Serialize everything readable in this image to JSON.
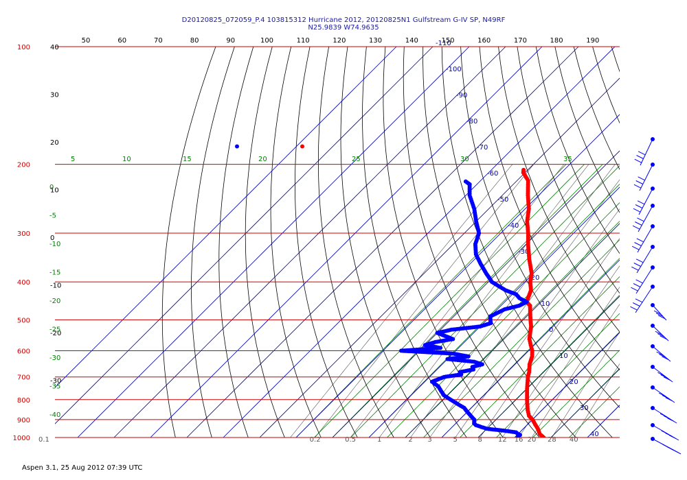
{
  "header": {
    "title_line1": "D20120825_072059_P.4 103815312 Hurricane 2012, 20120825N1 Gulfstream G-IV SP, N49RF",
    "title_line2": "N25.9839 W74.9635"
  },
  "footer": {
    "text": "Aspen 3.1, 25 Aug 2012  07:39 UTC"
  },
  "colors": {
    "temperature": "#ff0000",
    "dewpoint": "#0000ff",
    "isobar": "#cc0000",
    "isotherm": "#0000aa",
    "dry_adiabat": "#000000",
    "moist_adiabat": "#008000",
    "mixing_ratio": "#555555"
  },
  "chart_data": {
    "type": "line",
    "chart_kind": "Skew-T log-P sounding",
    "pressure_levels": [
      100,
      200,
      300,
      400,
      500,
      600,
      700,
      800,
      900,
      1000
    ],
    "pressure_labels": [
      "100",
      "200",
      "300",
      "400",
      "500",
      "600",
      "700",
      "800",
      "900",
      "1000"
    ],
    "top_axis_ticks": [
      "50",
      "60",
      "70",
      "80",
      "90",
      "100",
      "110",
      "120",
      "130",
      "140",
      "150",
      "160",
      "170",
      "180",
      "190"
    ],
    "isotherm_labels": [
      "-110",
      "-100",
      "-90",
      "-80",
      "-70",
      "-60",
      "-50",
      "-40",
      "-30",
      "-20",
      "-10",
      "0",
      "10",
      "20",
      "30",
      "40"
    ],
    "dry_adiabat_labels": [
      "40",
      "30",
      "20",
      "10",
      "0",
      "-10",
      "-20",
      "-30"
    ],
    "moist_adiabat_labels": [
      "5",
      "10",
      "15",
      "20",
      "25",
      "30",
      "35",
      "0",
      "-5",
      "-10",
      "-15",
      "-20",
      "-25",
      "-30",
      "-35",
      "-40"
    ],
    "mixing_ratio_labels": [
      "0.1",
      "0.2",
      "0.5",
      "1",
      "2",
      "3",
      "5",
      "8",
      "12",
      "16",
      "20",
      "28",
      "40"
    ],
    "series": [
      {
        "name": "Temperature",
        "unit": "°C",
        "p": [
          1000,
          980,
          950,
          925,
          900,
          880,
          850,
          800,
          750,
          700,
          680,
          650,
          620,
          600,
          580,
          560,
          540,
          520,
          500,
          480,
          460,
          450,
          420,
          400,
          380,
          350,
          320,
          300,
          280,
          260,
          240,
          220,
          210,
          205
        ],
        "t": [
          28,
          26,
          24,
          22,
          20,
          18,
          16,
          13,
          10,
          7,
          6,
          4,
          2.5,
          1,
          -1,
          -3,
          -4.5,
          -6,
          -8,
          -10,
          -12,
          -14,
          -16,
          -18.5,
          -20.5,
          -25,
          -29.5,
          -32.5,
          -36,
          -39,
          -43,
          -47,
          -50.5,
          -51.5
        ]
      },
      {
        "name": "Dewpoint",
        "unit": "°C",
        "p": [
          1000,
          990,
          985,
          980,
          970,
          960,
          950,
          930,
          920,
          900,
          880,
          860,
          840,
          820,
          800,
          780,
          760,
          740,
          720,
          710,
          700,
          690,
          680,
          670,
          660,
          650,
          640,
          630,
          620,
          610,
          600,
          590,
          580,
          570,
          560,
          550,
          540,
          530,
          520,
          510,
          500,
          490,
          480,
          470,
          460,
          450,
          440,
          430,
          420,
          410,
          400,
          380,
          360,
          340,
          320,
          300,
          280,
          260,
          240,
          225,
          220
        ],
        "t": [
          21,
          20.5,
          20.8,
          20,
          19,
          15,
          10,
          6,
          5,
          4,
          2,
          0,
          -2,
          -5,
          -8,
          -11,
          -13,
          -15,
          -18,
          -17,
          -16,
          -12,
          -13,
          -10,
          -11,
          -9,
          -12,
          -20,
          -15,
          -20,
          -35,
          -25,
          -30,
          -28,
          -24,
          -27,
          -30,
          -27,
          -20,
          -18,
          -19,
          -20,
          -19,
          -18,
          -15,
          -14,
          -17,
          -19,
          -23,
          -26,
          -29,
          -33,
          -37,
          -41,
          -44,
          -46,
          -50,
          -54,
          -59,
          -62,
          -64.5
        ]
      }
    ],
    "isolated_points": [
      {
        "series": "Dewpoint",
        "label": "isolated dewpoint point",
        "p": 180
      },
      {
        "series": "Temperature",
        "label": "isolated temperature point",
        "p": 180
      }
    ]
  }
}
